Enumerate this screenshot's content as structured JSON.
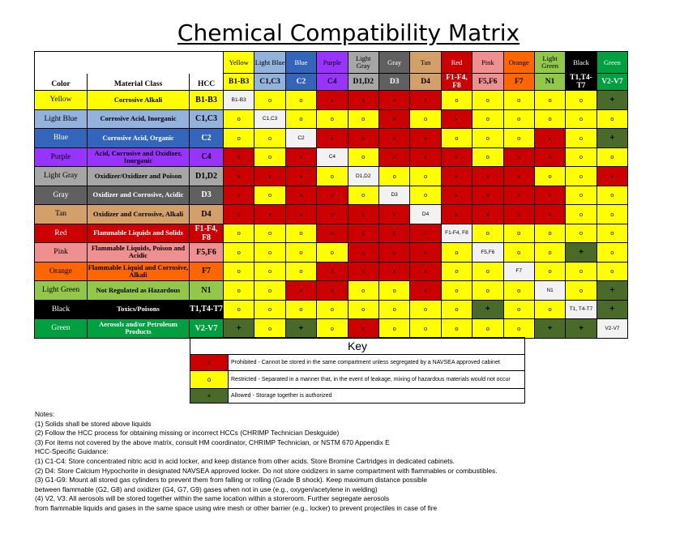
{
  "title": "Chemical Compatibility Matrix",
  "headers": {
    "color": "Color",
    "material": "Material Class",
    "hcc": "HCC"
  },
  "colors": {
    "yellow": "#ffff00",
    "lightblue": "#93b3dc",
    "blue": "#3366bb",
    "purple": "#9933ff",
    "lightgray": "#a6a6a6",
    "gray": "#606060",
    "tan": "#d4a06a",
    "red": "#cc0000",
    "pink": "#ef8f8f",
    "orange": "#ff6600",
    "lightgreen": "#92c84a",
    "black": "#000000",
    "green": "#00a040",
    "darkgreen": "#4a6a2a",
    "white": "#ffffff",
    "neutral": "#f2f2f2"
  },
  "groups": [
    {
      "color_name": "Yellow",
      "color_key": "yellow",
      "material": "Corrosive Alkali",
      "hcc": "B1-B3"
    },
    {
      "color_name": "Light Blue",
      "color_key": "lightblue",
      "material": "Corrosive Acid, Inorganic",
      "hcc": "C1,C3"
    },
    {
      "color_name": "Blue",
      "color_key": "blue",
      "material": "Corrosive Acid, Organic",
      "hcc": "C2"
    },
    {
      "color_name": "Purple",
      "color_key": "purple",
      "material": "Acid, Corrosive and Oxidizer, Inorganic",
      "hcc": "C4"
    },
    {
      "color_name": "Light Gray",
      "color_key": "lightgray",
      "material": "Oxidizer/Oxidizer and Poison",
      "hcc": "D1,D2"
    },
    {
      "color_name": "Gray",
      "color_key": "gray",
      "material": "Oxidizer and Corrosive, Acidic",
      "hcc": "D3"
    },
    {
      "color_name": "Tan",
      "color_key": "tan",
      "material": "Oxidizer and Corrosive, Alkali",
      "hcc": "D4"
    },
    {
      "color_name": "Red",
      "color_key": "red",
      "material": "Flammable Liquids and Solids",
      "hcc": "F1-F4, F8"
    },
    {
      "color_name": "Pink",
      "color_key": "pink",
      "material": "Flammable Liquids, Poison and Acidic",
      "hcc": "F5,F6"
    },
    {
      "color_name": "Orange",
      "color_key": "orange",
      "material": "Flammable Liquid and Corrosive, Alkali",
      "hcc": "F7"
    },
    {
      "color_name": "Light Green",
      "color_key": "lightgreen",
      "material": "Not Regulated as Hazardous",
      "hcc": "N1"
    },
    {
      "color_name": "Black",
      "color_key": "black",
      "material": "Toxics/Poisons",
      "hcc": "T1,T4-T7"
    },
    {
      "color_name": "Green",
      "color_key": "green",
      "material": "Aerosols and/or Petroleum Products",
      "hcc": "V2-V7"
    }
  ],
  "column_names": [
    "Yellow",
    "Light Blue",
    "Blue",
    "Purple",
    "Light Gray",
    "Gray",
    "Tan",
    "Red",
    "Pink",
    "Orange",
    "Light Green",
    "Black",
    "Green"
  ],
  "column_codes": [
    "B1-B3",
    "C1,C3",
    "C2",
    "C4",
    "D1,D2",
    "D3",
    "D4",
    "F1-F4, F8",
    "F5,F6",
    "F7",
    "N1",
    "T1,T4-T7",
    "V2-V7"
  ],
  "diagonal_labels": [
    "B1-B3",
    "C1,C3",
    "C2",
    "C4",
    "D1,D2",
    "D3",
    "D4",
    "F1-F4, F8",
    "F5,F6",
    "F7",
    "N1",
    "T1, T4-T7",
    "V2-V7"
  ],
  "matrix": [
    [
      "D",
      "O",
      "O",
      "X",
      "X",
      "X",
      "X",
      "O",
      "O",
      "O",
      "O",
      "O",
      "+"
    ],
    [
      "O",
      "D",
      "O",
      "O",
      "O",
      "X",
      "O",
      "X",
      "O",
      "O",
      "O",
      "O",
      "O"
    ],
    [
      "O",
      "O",
      "D",
      "X",
      "X",
      "X",
      "X",
      "O",
      "O",
      "O",
      "X",
      "O",
      "+"
    ],
    [
      "X",
      "O",
      "X",
      "D",
      "O",
      "X",
      "X",
      "X",
      "O",
      "X",
      "X",
      "O",
      "O"
    ],
    [
      "X",
      "X",
      "X",
      "O",
      "D",
      "O",
      "O",
      "X",
      "X",
      "X",
      "O",
      "O",
      "X"
    ],
    [
      "X",
      "O",
      "X",
      "X",
      "O",
      "D",
      "O",
      "X",
      "X",
      "X",
      "X",
      "O",
      "O"
    ],
    [
      "X",
      "X",
      "X",
      "X",
      "X",
      "X",
      "D",
      "X",
      "X",
      "X",
      "X",
      "O",
      "O"
    ],
    [
      "O",
      "O",
      "O",
      "X",
      "X",
      "X",
      "X",
      "D",
      "O",
      "O",
      "O",
      "O",
      "O"
    ],
    [
      "O",
      "O",
      "O",
      "O",
      "X",
      "X",
      "X",
      "O",
      "D",
      "O",
      "O",
      "+",
      "O"
    ],
    [
      "O",
      "O",
      "O",
      "X",
      "X",
      "X",
      "X",
      "O",
      "O",
      "D",
      "O",
      "O",
      "O"
    ],
    [
      "O",
      "O",
      "X",
      "X",
      "O",
      "O",
      "X",
      "O",
      "O",
      "O",
      "D",
      "O",
      "+"
    ],
    [
      "O",
      "O",
      "O",
      "O",
      "O",
      "O",
      "O",
      "O",
      "+",
      "O",
      "O",
      "D",
      "+"
    ],
    [
      "+",
      "O",
      "+",
      "O",
      "X",
      "O",
      "O",
      "O",
      "O",
      "O",
      "+",
      "+",
      "D"
    ]
  ],
  "symbols": {
    "prohibited": "x",
    "restricted": "o",
    "allowed": "+"
  },
  "key": {
    "title": "Key",
    "items": [
      {
        "symbol": "x",
        "text": "Prohibited - Cannot be stored in the same compartment unless segregated by a NAVSEA approved cabinet"
      },
      {
        "symbol": "o",
        "text": "Restricted - Separated in a manner that, in the event of leakage, mixing of hazardous materials would not occur"
      },
      {
        "symbol": "+",
        "text": "Allowed - Storage together is authorized"
      }
    ]
  },
  "notes": {
    "heading": "Notes:",
    "lines": [
      "(1) Solids shall be stored above liquids",
      "(2) Follow the HCC process for obtaining missing or incorrect HCCs (CHRIMP Technician Deskguide)",
      "(3) For items not covered by the above matrix, consult HM coordinator, CHRIMP Technician, or NSTM 670 Appendix E"
    ],
    "guidance_heading": "HCC-Specific Guidance:",
    "guidance": [
      "(1) C1-C4:  Store concentrated nitric acid in acid locker, and keep distance from other acids.  Store Bromine Cartridges in dedicated cabinets.",
      "(2) D4:  Store Calcium Hypochorite in designated NAVSEA approved locker.  Do not store oxidizers in same compartment with flammables or combustibles.",
      "(3) G1-G9: Mount all stored gas cylinders to prevent them from falling or rolling (Grade B shock).  Keep maximum distance possible",
      "between flammable (G2, G8) and oxidizer (G4, G7, G9) gases when not in use (e.g., oxygen/acetylene in welding)",
      "(4) V2, V3:  All aerosols will be stored together within the same location within a storeroom.  Further segregate aerosols",
      "from flammable liquids and gases in the same space using wire mesh or other barrier (e.g., locker) to prevent projectiles in case of fire"
    ]
  }
}
